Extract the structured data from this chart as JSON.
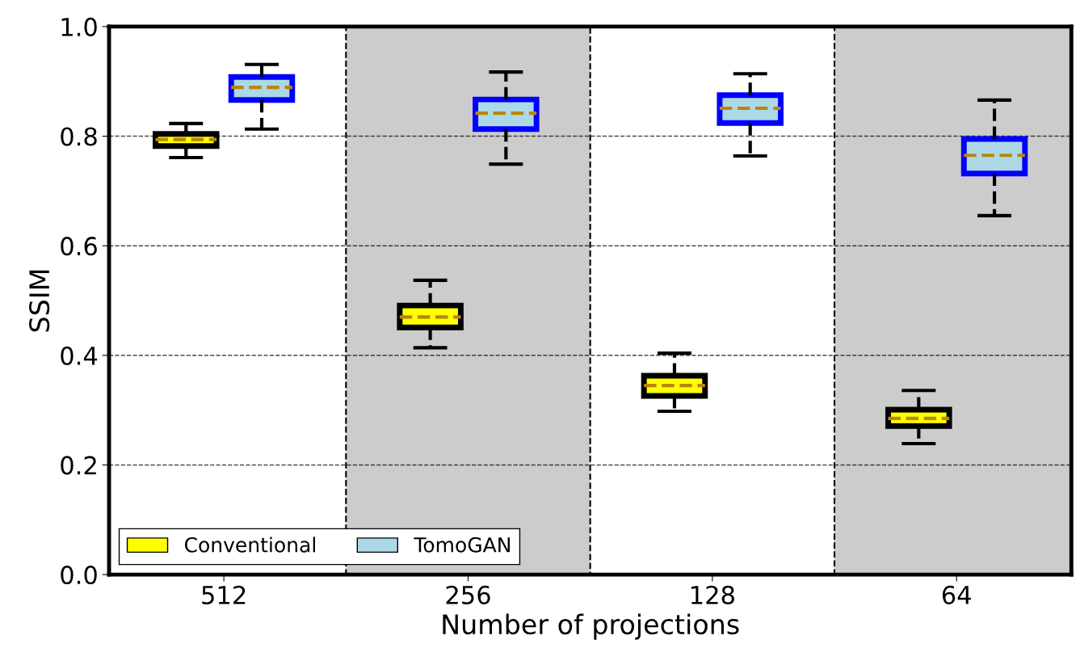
{
  "chart_data": {
    "type": "box",
    "xlabel": "Number of projections",
    "ylabel": "SSIM",
    "categories": [
      "512",
      "256",
      "128",
      "64"
    ],
    "ylim": [
      0.0,
      1.0
    ],
    "yticks": [
      {
        "value": 0.0,
        "label": "0.0"
      },
      {
        "value": 0.2,
        "label": "0.2"
      },
      {
        "value": 0.4,
        "label": "0.4"
      },
      {
        "value": 0.6,
        "label": "0.6"
      },
      {
        "value": 0.8,
        "label": "0.8"
      },
      {
        "value": 1.0,
        "label": "1.0"
      }
    ],
    "grid": "y",
    "legend": "bottom left",
    "bands": [
      {
        "axis": "x",
        "from": "256",
        "to": "256",
        "color": "#cccccc"
      },
      {
        "axis": "x",
        "from": "64",
        "to": "64",
        "color": "#cccccc"
      }
    ],
    "series": [
      {
        "name": "Conventional",
        "color": "#ffff00",
        "boxes": [
          {
            "low": 0.761,
            "q1": 0.782,
            "median": 0.794,
            "q3": 0.804,
            "high": 0.823
          },
          {
            "low": 0.414,
            "q1": 0.451,
            "median": 0.47,
            "q3": 0.491,
            "high": 0.537
          },
          {
            "low": 0.298,
            "q1": 0.326,
            "median": 0.345,
            "q3": 0.363,
            "high": 0.404
          },
          {
            "low": 0.239,
            "q1": 0.271,
            "median": 0.285,
            "q3": 0.301,
            "high": 0.336
          }
        ]
      },
      {
        "name": "TomoGAN",
        "color": "#add8e6",
        "boxes": [
          {
            "low": 0.813,
            "q1": 0.866,
            "median": 0.889,
            "q3": 0.908,
            "high": 0.931
          },
          {
            "low": 0.749,
            "q1": 0.813,
            "median": 0.842,
            "q3": 0.867,
            "high": 0.917
          },
          {
            "low": 0.764,
            "q1": 0.824,
            "median": 0.851,
            "q3": 0.875,
            "high": 0.914
          },
          {
            "low": 0.655,
            "q1": 0.732,
            "median": 0.765,
            "q3": 0.795,
            "high": 0.866
          }
        ]
      }
    ]
  }
}
